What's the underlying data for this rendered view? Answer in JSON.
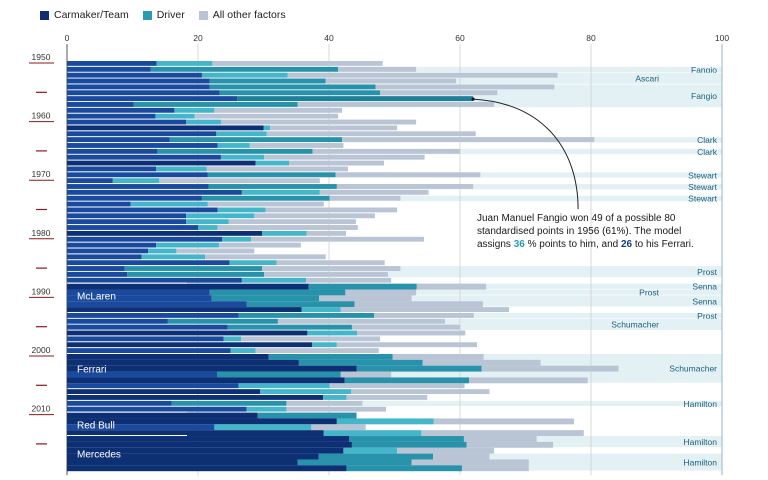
{
  "legend": [
    {
      "label": "Carmaker/Team",
      "color": "#0f2f6e"
    },
    {
      "label": "Driver",
      "color": "#2b9bb2"
    },
    {
      "label": "All other factors",
      "color": "#b9c4d4"
    }
  ],
  "annotation": {
    "line1": "Juan Manuel Fangio won 49 of a possible 80",
    "line2": "standardised points in 1956 (61%). The model",
    "line3_a": "assigns ",
    "driver_value": "36",
    "line3_b": " % points to him, and ",
    "team_value": "26",
    "line3_c": " to his Ferrari."
  },
  "chart_data": {
    "type": "bar",
    "orientation": "horizontal",
    "stacked": true,
    "xlim": [
      0,
      100
    ],
    "x_ticks": [
      "0",
      "20",
      "40",
      "60",
      "80",
      "100"
    ],
    "y_tick_labels": [
      "1950",
      "1960",
      "1970",
      "1980",
      "1990",
      "2000",
      "2010"
    ],
    "grid": true,
    "legend_position": "top-left",
    "categories": [
      1950,
      1951,
      1952,
      1953,
      1954,
      1955,
      1956,
      1957,
      1958,
      1959,
      1960,
      1961,
      1962,
      1963,
      1964,
      1965,
      1966,
      1967,
      1968,
      1969,
      1970,
      1971,
      1972,
      1973,
      1974,
      1975,
      1976,
      1977,
      1978,
      1979,
      1980,
      1981,
      1982,
      1983,
      1984,
      1985,
      1986,
      1987,
      1988,
      1989,
      1990,
      1991,
      1992,
      1993,
      1994,
      1995,
      1996,
      1997,
      1998,
      1999,
      2000,
      2001,
      2002,
      2003,
      2004,
      2005,
      2006,
      2007,
      2008,
      2009,
      2010,
      2011,
      2012,
      2013,
      2014,
      2015,
      2016,
      2017,
      2018,
      2019
    ],
    "series": [
      {
        "name": "Carmaker/Team",
        "values": [
          13.7,
          12.8,
          20.6,
          21.8,
          21.8,
          23.3,
          26,
          10.2,
          16.4,
          13.5,
          18.2,
          30.0,
          22.8,
          15.7,
          23.0,
          13.8,
          23.5,
          28.8,
          13.6,
          21.5,
          7.0,
          21.6,
          26.7,
          20.6,
          9.7,
          23.0,
          18.2,
          18.2,
          20.0,
          29.8,
          23.7,
          13.6,
          12.4,
          11.4,
          24.8,
          8.8,
          9.2,
          26.7,
          36.9,
          21.8,
          22.1,
          27.4,
          35.8,
          26.2,
          15.4,
          24.5,
          36.7,
          23.9,
          37.4,
          25.0,
          30.8,
          35.4,
          44.2,
          22.9,
          42.4,
          26.2,
          29.5,
          39.1,
          16.0,
          27.4,
          29.1,
          41.2,
          22.5,
          39.2,
          43.1,
          43.5,
          42.2,
          38.4,
          35.2,
          42.7
        ]
      },
      {
        "name": "Driver",
        "values": [
          8.5,
          28.6,
          13.1,
          17.7,
          25.3,
          24.5,
          36,
          25.0,
          6.1,
          6.0,
          5.3,
          1.0,
          7.7,
          26.3,
          4.9,
          23.7,
          6.6,
          5.1,
          7.7,
          19.5,
          7.1,
          19.6,
          11.9,
          19.5,
          11.8,
          7.3,
          10.4,
          6.5,
          3.0,
          6.8,
          4.4,
          9.6,
          4.3,
          9.7,
          7.2,
          21.0,
          20.9,
          9.8,
          16.5,
          20.7,
          16.4,
          16.5,
          6.0,
          20.7,
          16.8,
          19.0,
          7.6,
          2.7,
          3.8,
          3.8,
          18.9,
          18.9,
          19.1,
          18.9,
          19.0,
          13.9,
          13.9,
          3.6,
          17.5,
          6.1,
          15.1,
          14.8,
          14.8,
          14.9,
          17.5,
          17.5,
          8.2,
          17.5,
          17.4,
          17.6
        ]
      },
      {
        "name": "All other factors",
        "values": [
          26.0,
          11.9,
          41.2,
          19.9,
          27.3,
          17.9,
          0,
          30.0,
          19.5,
          21.9,
          29.8,
          19.4,
          31.9,
          38.5,
          14.3,
          22.5,
          24.5,
          14.5,
          21.6,
          22.1,
          24.5,
          20.8,
          16.6,
          10.8,
          17.7,
          20.1,
          18.4,
          19.4,
          21.4,
          6.0,
          26.4,
          12.5,
          11.9,
          18.4,
          16.5,
          21.1,
          18.9,
          13.0,
          10.6,
          10.8,
          14.1,
          19.6,
          25.7,
          15.2,
          25.5,
          16.5,
          16.5,
          21.2,
          21.4,
          18.8,
          13.9,
          18.0,
          20.9,
          7.7,
          18.1,
          20.6,
          21.1,
          12.3,
          11.6,
          15.2,
          0,
          21.4,
          8.3,
          24.8,
          11.1,
          13.2,
          14.8,
          8.6,
          17.9,
          10.2
        ]
      }
    ],
    "champion_bands": [
      {
        "name": "Fangio",
        "from": 1951,
        "to": 1951
      },
      {
        "name": "Ascari",
        "from": 1952,
        "to": 1953
      },
      {
        "name": "Fangio",
        "from": 1954,
        "to": 1957
      },
      {
        "name": "Clark",
        "from": 1963,
        "to": 1963
      },
      {
        "name": "Clark",
        "from": 1965,
        "to": 1965
      },
      {
        "name": "Stewart",
        "from": 1969,
        "to": 1969
      },
      {
        "name": "Stewart",
        "from": 1971,
        "to": 1971
      },
      {
        "name": "Stewart",
        "from": 1973,
        "to": 1973
      },
      {
        "name": "Prost",
        "from": 1985,
        "to": 1986
      },
      {
        "name": "Senna",
        "from": 1988,
        "to": 1988
      },
      {
        "name": "Prost",
        "from": 1989,
        "to": 1989
      },
      {
        "name": "Senna",
        "from": 1990,
        "to": 1991
      },
      {
        "name": "Prost",
        "from": 1993,
        "to": 1993
      },
      {
        "name": "Schumacher",
        "from": 1994,
        "to": 1995
      },
      {
        "name": "Schumacher",
        "from": 2000,
        "to": 2004
      },
      {
        "name": "Hamilton",
        "from": 2008,
        "to": 2008
      },
      {
        "name": "Hamilton",
        "from": 2014,
        "to": 2015
      },
      {
        "name": "Hamilton",
        "from": 2017,
        "to": 2019
      }
    ],
    "team_blocks": [
      {
        "name": "McLaren",
        "from": 1988,
        "to": 1991
      },
      {
        "name": "Ferrari",
        "from": 2000,
        "to": 2004
      },
      {
        "name": "Red Bull",
        "from": 2010,
        "to": 2013
      },
      {
        "name": "Mercedes",
        "from": 2014,
        "to": 2019
      }
    ],
    "highlight": {
      "year": 1956
    }
  }
}
